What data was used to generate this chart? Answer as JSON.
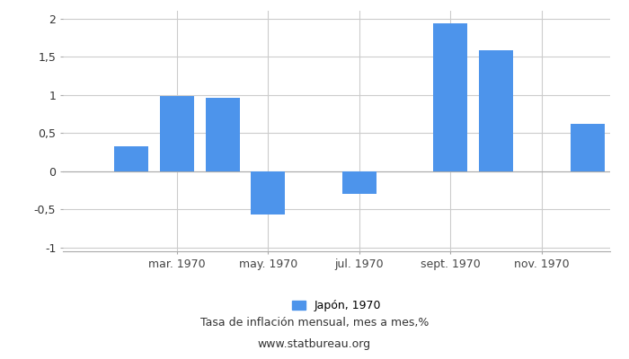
{
  "month_indices": [
    1,
    2,
    3,
    4,
    5,
    6,
    7,
    8,
    9,
    10,
    11,
    12
  ],
  "values": [
    0.0,
    0.33,
    0.98,
    0.96,
    -0.57,
    0.0,
    -0.3,
    0.0,
    1.93,
    1.58,
    0.0,
    0.62
  ],
  "bar_color": "#4d94eb",
  "background_color": "#ffffff",
  "grid_color": "#cccccc",
  "ylim": [
    -1.05,
    2.1
  ],
  "yticks": [
    -1.0,
    -0.5,
    0.0,
    0.5,
    1.0,
    1.5,
    2.0
  ],
  "ytick_labels": [
    "-1",
    "-0,5",
    "0",
    "0,5",
    "1",
    "1,5",
    "2"
  ],
  "xtick_positions": [
    3,
    5,
    7,
    9,
    11
  ],
  "xtick_labels": [
    "mar. 1970",
    "may. 1970",
    "jul. 1970",
    "sept. 1970",
    "nov. 1970"
  ],
  "legend_label": "Japón, 1970",
  "xlabel_bottom": "Tasa de inflación mensual, mes a mes,%",
  "source": "www.statbureau.org",
  "axis_fontsize": 9,
  "legend_fontsize": 9
}
